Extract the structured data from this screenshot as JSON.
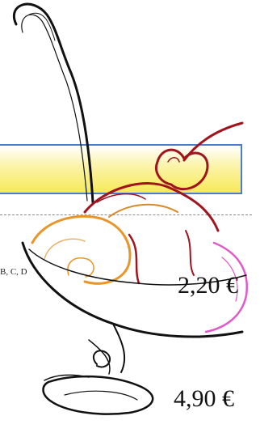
{
  "options_text": "B, C, D",
  "prices": [
    "2,20 €",
    "4,90 €"
  ],
  "colors": {
    "banner_border": "#4a7ccb",
    "banner_fill": "#f7ea59",
    "cherry": "#a0141e",
    "scoop_orange": "#e8962a",
    "syrup_pink": "#e05ac8"
  },
  "icons": [
    "ice-cream-sundae-icon",
    "cherry-icon",
    "spoon-icon"
  ]
}
